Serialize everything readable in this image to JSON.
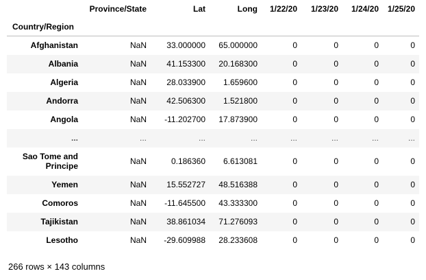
{
  "table": {
    "columns": [
      "Province/State",
      "Lat",
      "Long",
      "1/22/20",
      "1/23/20",
      "1/24/20",
      "1/25/20"
    ],
    "index_name": "Country/Region",
    "rows": [
      {
        "index": "Afghanistan",
        "cells": [
          "NaN",
          "33.000000",
          "65.000000",
          "0",
          "0",
          "0",
          "0"
        ]
      },
      {
        "index": "Albania",
        "cells": [
          "NaN",
          "41.153300",
          "20.168300",
          "0",
          "0",
          "0",
          "0"
        ]
      },
      {
        "index": "Algeria",
        "cells": [
          "NaN",
          "28.033900",
          "1.659600",
          "0",
          "0",
          "0",
          "0"
        ]
      },
      {
        "index": "Andorra",
        "cells": [
          "NaN",
          "42.506300",
          "1.521800",
          "0",
          "0",
          "0",
          "0"
        ]
      },
      {
        "index": "Angola",
        "cells": [
          "NaN",
          "-11.202700",
          "17.873900",
          "0",
          "0",
          "0",
          "0"
        ]
      },
      {
        "index": "...",
        "cells": [
          "...",
          "...",
          "...",
          "...",
          "...",
          "...",
          "..."
        ]
      },
      {
        "index": "Sao Tome and Principe",
        "cells": [
          "NaN",
          "0.186360",
          "6.613081",
          "0",
          "0",
          "0",
          "0"
        ]
      },
      {
        "index": "Yemen",
        "cells": [
          "NaN",
          "15.552727",
          "48.516388",
          "0",
          "0",
          "0",
          "0"
        ]
      },
      {
        "index": "Comoros",
        "cells": [
          "NaN",
          "-11.645500",
          "43.333300",
          "0",
          "0",
          "0",
          "0"
        ]
      },
      {
        "index": "Tajikistan",
        "cells": [
          "NaN",
          "38.861034",
          "71.276093",
          "0",
          "0",
          "0",
          "0"
        ]
      },
      {
        "index": "Lesotho",
        "cells": [
          "NaN",
          "-29.609988",
          "28.233608",
          "0",
          "0",
          "0",
          "0"
        ]
      }
    ]
  },
  "footer": {
    "shape_text": "266 rows × 143 columns"
  }
}
